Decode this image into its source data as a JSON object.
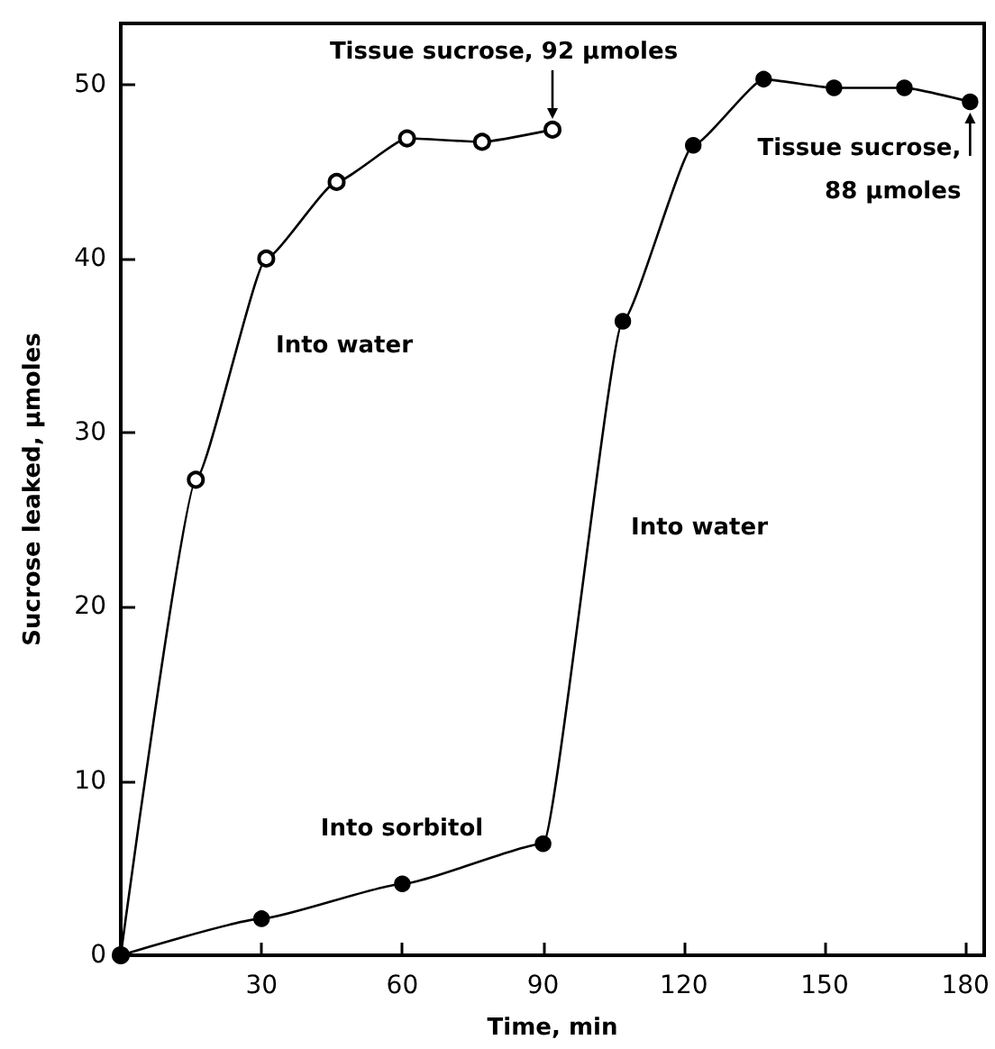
{
  "chart_data": {
    "type": "line",
    "xlabel": "Time, min",
    "ylabel": "Sucrose leaked, μmoles",
    "xlim": [
      0,
      184
    ],
    "ylim": [
      0,
      53.5
    ],
    "xticks": [
      30,
      60,
      90,
      120,
      150,
      180
    ],
    "yticks": [
      0,
      10,
      20,
      30,
      40,
      50
    ],
    "marker": "circle",
    "line_style": "solid",
    "grid": false,
    "series": [
      {
        "color": "#000000",
        "x": [
          0,
          16,
          31,
          46,
          61,
          77,
          92
        ],
        "values": [
          0,
          27.3,
          40,
          44.4,
          46.9,
          46.7,
          47.4
        ]
      },
      {
        "color": "#000000",
        "x": [
          0,
          30,
          60,
          90,
          107,
          122,
          137,
          152,
          167,
          181
        ],
        "values": [
          0,
          2.1,
          4.1,
          6.4,
          36.4,
          46.5,
          50.3,
          49.8,
          49.8,
          49
        ]
      }
    ],
    "annotations": [
      {
        "text": "Tissue sucrose, 92 μmoles",
        "x": 92,
        "y": 47.4
      },
      {
        "text": "Tissue sucrose,\n88 μmoles",
        "x": 181,
        "y": 49
      },
      "Into water",
      "Into water",
      "Into sorbitol"
    ]
  }
}
